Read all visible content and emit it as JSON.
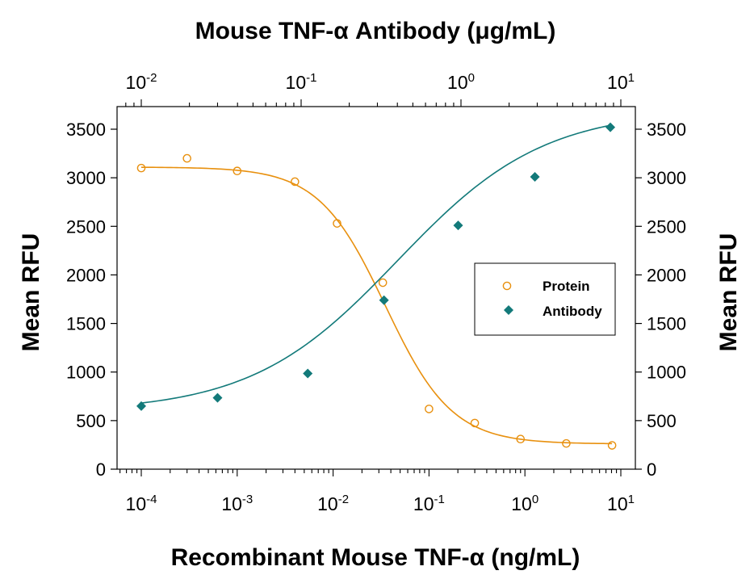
{
  "chart_data": {
    "type": "scatter",
    "title": "Mouse TNF-α Antibody (μg/mL)",
    "xlabel": "Recombinant Mouse TNF-α (ng/mL)",
    "ylabel": "Mean RFU",
    "ylabel_right": "Mean RFU",
    "x_scale": "log",
    "xlim": [
      5e-05,
      12
    ],
    "x_top_scale": "log",
    "x_top_lim": [
      0.006,
      12
    ],
    "ylim": [
      0,
      3500
    ],
    "y_ticks": [
      0,
      500,
      1000,
      1500,
      2000,
      2500,
      3000,
      3500
    ],
    "y_tick_labels": [
      "0",
      "500",
      "1000",
      "1500",
      "2000",
      "2500",
      "3000",
      "3500"
    ],
    "x_bottom_ticks": [
      {
        "value": 0.0001,
        "base": "10",
        "exp": "-4"
      },
      {
        "value": 0.001,
        "base": "10",
        "exp": "-3"
      },
      {
        "value": 0.01,
        "base": "10",
        "exp": "-2"
      },
      {
        "value": 0.1,
        "base": "10",
        "exp": "-1"
      },
      {
        "value": 1,
        "base": "10",
        "exp": "0"
      },
      {
        "value": 10,
        "base": "10",
        "exp": "1"
      }
    ],
    "x_top_ticks": [
      {
        "value": 0.01,
        "base": "10",
        "exp": "-2"
      },
      {
        "value": 0.1,
        "base": "10",
        "exp": "-1"
      },
      {
        "value": 1,
        "base": "10",
        "exp": "0"
      },
      {
        "value": 10,
        "base": "10",
        "exp": "1"
      }
    ],
    "grid": false,
    "legend_position": "center-right",
    "series": [
      {
        "name": "Protein",
        "axis": "bottom",
        "color": "#E8900E",
        "marker": "open-circle",
        "points": [
          {
            "x": 0.0001,
            "y": 3100
          },
          {
            "x": 0.0003,
            "y": 3200
          },
          {
            "x": 0.001,
            "y": 3070
          },
          {
            "x": 0.004,
            "y": 2960
          },
          {
            "x": 0.011,
            "y": 2530
          },
          {
            "x": 0.033,
            "y": 1920
          },
          {
            "x": 0.1,
            "y": 620
          },
          {
            "x": 0.3,
            "y": 475
          },
          {
            "x": 0.9,
            "y": 310
          },
          {
            "x": 2.7,
            "y": 265
          },
          {
            "x": 8.1,
            "y": 245
          }
        ],
        "fit": {
          "bottom": 260,
          "top": 3110,
          "ec50": 0.035,
          "hill": 1.25
        }
      },
      {
        "name": "Antibody",
        "axis": "top",
        "color": "#137A7A",
        "marker": "filled-diamond",
        "points": [
          {
            "x": 0.01,
            "y": 650
          },
          {
            "x": 0.03,
            "y": 735
          },
          {
            "x": 0.11,
            "y": 985
          },
          {
            "x": 0.33,
            "y": 1740
          },
          {
            "x": 0.96,
            "y": 2510
          },
          {
            "x": 2.9,
            "y": 3010
          },
          {
            "x": 8.6,
            "y": 3520
          }
        ],
        "fit": {
          "bottom": 590,
          "top": 3700,
          "ec50": 0.4,
          "hill": 0.95
        }
      }
    ]
  }
}
